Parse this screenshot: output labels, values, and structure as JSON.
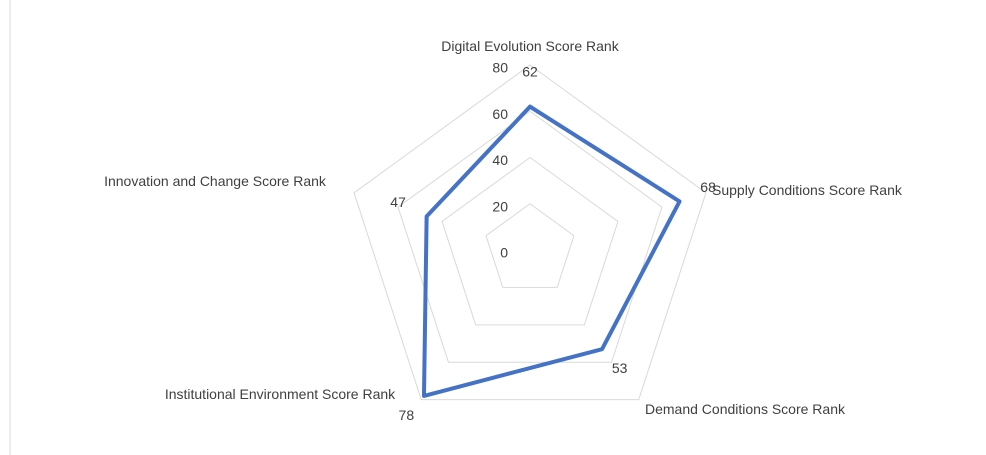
{
  "chart_data": {
    "type": "radar",
    "categories": [
      "Digital Evolution Score Rank",
      "Supply Conditions Score Rank",
      "Demand Conditions Score Rank",
      "Institutional Environment Score Rank",
      "Innovation and Change Score Rank"
    ],
    "values": [
      62,
      68,
      53,
      78,
      47
    ],
    "color": "#4472c4",
    "rlim": [
      0,
      80
    ],
    "rticks": [
      0,
      20,
      40,
      60,
      80
    ],
    "grid": true
  }
}
